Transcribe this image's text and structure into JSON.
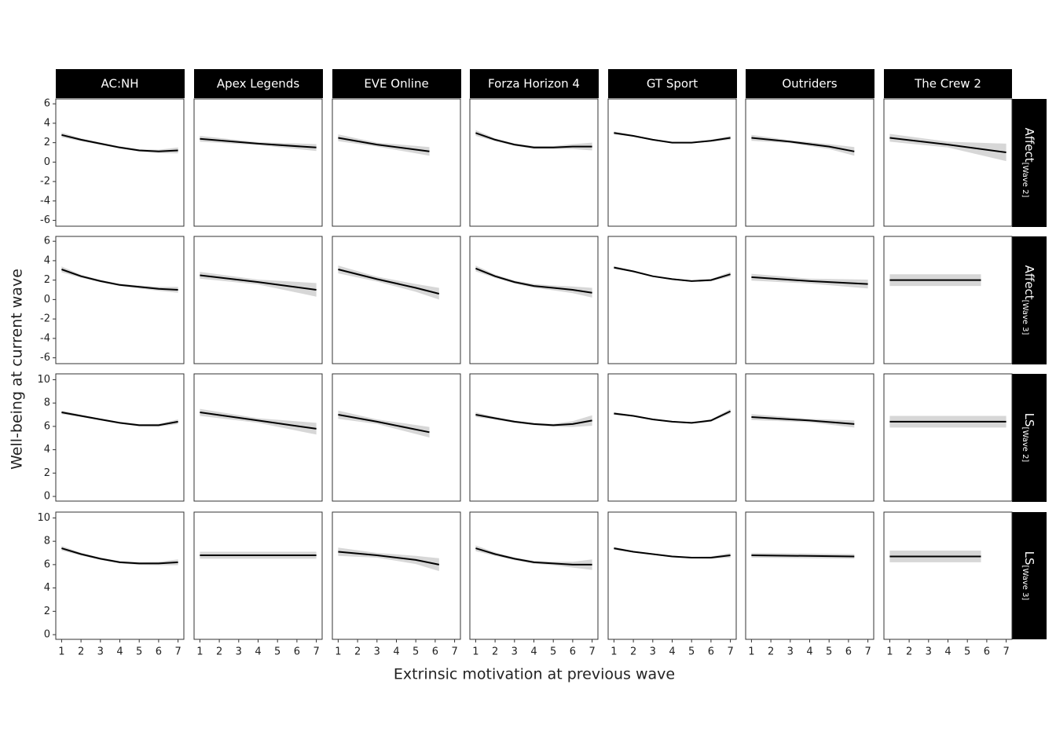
{
  "chart_data": {
    "type": "line",
    "x_label": "Extrinsic motivation at previous wave",
    "y_label": "Well-being at current wave",
    "columns": [
      "AC:NH",
      "Apex Legends",
      "EVE Online",
      "Forza Horizon 4",
      "GT Sport",
      "Outriders",
      "The Crew 2"
    ],
    "xlim": [
      0.7,
      7.3
    ],
    "xticks": [
      1,
      2,
      3,
      4,
      5,
      6,
      7
    ],
    "line_color": "#000000",
    "band_color": "#bdbdbd",
    "rows": [
      {
        "label": "Affect",
        "sub": "[Wave 2]",
        "ylim": [
          -6.6,
          6.5
        ],
        "yticks": [
          -6,
          -4,
          -2,
          0,
          2,
          4,
          6
        ],
        "panels": [
          {
            "x": [
              1,
              2,
              3,
              4,
              5,
              6,
              7
            ],
            "values": [
              2.8,
              2.3,
              1.9,
              1.5,
              1.2,
              1.1,
              1.2
            ],
            "se": [
              0.25,
              0.15,
              0.12,
              0.12,
              0.12,
              0.18,
              0.3
            ]
          },
          {
            "x": [
              1,
              4,
              7
            ],
            "values": [
              2.4,
              1.9,
              1.5
            ],
            "se": [
              0.3,
              0.15,
              0.35
            ]
          },
          {
            "x": [
              1,
              3,
              5.7
            ],
            "values": [
              2.5,
              1.8,
              1.1
            ],
            "se": [
              0.35,
              0.2,
              0.45
            ]
          },
          {
            "x": [
              1,
              2,
              3,
              4,
              5,
              6,
              7
            ],
            "values": [
              3.0,
              2.3,
              1.8,
              1.5,
              1.5,
              1.6,
              1.6
            ],
            "se": [
              0.3,
              0.15,
              0.12,
              0.15,
              0.15,
              0.25,
              0.4
            ]
          },
          {
            "x": [
              1,
              2,
              3,
              4,
              5,
              6,
              7
            ],
            "values": [
              3.0,
              2.7,
              2.3,
              2.0,
              2.0,
              2.2,
              2.5
            ],
            "se": [
              0.15,
              0.08,
              0.07,
              0.07,
              0.08,
              0.1,
              0.2
            ]
          },
          {
            "x": [
              1,
              3,
              5,
              6.3
            ],
            "values": [
              2.5,
              2.1,
              1.6,
              1.1
            ],
            "se": [
              0.3,
              0.15,
              0.25,
              0.45
            ]
          },
          {
            "x": [
              1,
              4,
              7
            ],
            "values": [
              2.5,
              1.8,
              1.0
            ],
            "se": [
              0.4,
              0.3,
              0.9
            ]
          }
        ]
      },
      {
        "label": "Affect",
        "sub": "[Wave 3]",
        "ylim": [
          -6.6,
          6.5
        ],
        "yticks": [
          -6,
          -4,
          -2,
          0,
          2,
          4,
          6
        ],
        "panels": [
          {
            "x": [
              1,
              2,
              3,
              4,
              5,
              6,
              7
            ],
            "values": [
              3.1,
              2.4,
              1.9,
              1.5,
              1.3,
              1.1,
              1.0
            ],
            "se": [
              0.3,
              0.15,
              0.12,
              0.12,
              0.15,
              0.2,
              0.3
            ]
          },
          {
            "x": [
              1,
              4,
              7
            ],
            "values": [
              2.5,
              1.8,
              1.0
            ],
            "se": [
              0.35,
              0.25,
              0.7
            ]
          },
          {
            "x": [
              1,
              3,
              5,
              6.2
            ],
            "values": [
              3.1,
              2.1,
              1.2,
              0.6
            ],
            "se": [
              0.4,
              0.25,
              0.4,
              0.6
            ]
          },
          {
            "x": [
              1,
              2,
              3,
              4,
              5,
              6,
              7
            ],
            "values": [
              3.2,
              2.4,
              1.8,
              1.4,
              1.2,
              1.0,
              0.7
            ],
            "se": [
              0.3,
              0.18,
              0.15,
              0.2,
              0.25,
              0.35,
              0.5
            ]
          },
          {
            "x": [
              1,
              2,
              3,
              4,
              5,
              6,
              7
            ],
            "values": [
              3.3,
              2.9,
              2.4,
              2.1,
              1.9,
              2.0,
              2.6
            ],
            "se": [
              0.15,
              0.08,
              0.07,
              0.07,
              0.08,
              0.12,
              0.25
            ]
          },
          {
            "x": [
              1,
              4,
              7
            ],
            "values": [
              2.3,
              1.9,
              1.6
            ],
            "se": [
              0.35,
              0.25,
              0.45
            ]
          },
          {
            "x": [
              1,
              5.7
            ],
            "values": [
              2.0,
              2.0
            ],
            "se": [
              0.6,
              0.6
            ]
          }
        ]
      },
      {
        "label": "LS",
        "sub": "[Wave 2]",
        "ylim": [
          -0.4,
          10.5
        ],
        "yticks": [
          0,
          2,
          4,
          6,
          8,
          10
        ],
        "panels": [
          {
            "x": [
              1,
              2,
              3,
              4,
              5,
              6,
              7
            ],
            "values": [
              7.2,
              6.9,
              6.6,
              6.3,
              6.1,
              6.1,
              6.4
            ],
            "se": [
              0.15,
              0.1,
              0.08,
              0.08,
              0.1,
              0.12,
              0.2
            ]
          },
          {
            "x": [
              1,
              4,
              7
            ],
            "values": [
              7.2,
              6.5,
              5.8
            ],
            "se": [
              0.3,
              0.2,
              0.5
            ]
          },
          {
            "x": [
              1,
              3,
              5.7
            ],
            "values": [
              7.0,
              6.4,
              5.5
            ],
            "se": [
              0.35,
              0.2,
              0.45
            ]
          },
          {
            "x": [
              1,
              2,
              3,
              4,
              5,
              6,
              7
            ],
            "values": [
              7.0,
              6.7,
              6.4,
              6.2,
              6.1,
              6.2,
              6.5
            ],
            "se": [
              0.2,
              0.12,
              0.1,
              0.1,
              0.12,
              0.25,
              0.45
            ]
          },
          {
            "x": [
              1,
              2,
              3,
              4,
              5,
              6,
              7
            ],
            "values": [
              7.1,
              6.9,
              6.6,
              6.4,
              6.3,
              6.5,
              7.3
            ],
            "se": [
              0.12,
              0.07,
              0.06,
              0.06,
              0.07,
              0.1,
              0.2
            ]
          },
          {
            "x": [
              1,
              4,
              6.3
            ],
            "values": [
              6.8,
              6.5,
              6.2
            ],
            "se": [
              0.25,
              0.15,
              0.3
            ]
          },
          {
            "x": [
              1,
              7
            ],
            "values": [
              6.4,
              6.4
            ],
            "se": [
              0.5,
              0.5
            ]
          }
        ]
      },
      {
        "label": "LS",
        "sub": "[Wave 3]",
        "ylim": [
          -0.4,
          10.5
        ],
        "yticks": [
          0,
          2,
          4,
          6,
          8,
          10
        ],
        "panels": [
          {
            "x": [
              1,
              2,
              3,
              4,
              5,
              6,
              7
            ],
            "values": [
              7.4,
              6.9,
              6.5,
              6.2,
              6.1,
              6.1,
              6.2
            ],
            "se": [
              0.2,
              0.12,
              0.1,
              0.1,
              0.12,
              0.15,
              0.25
            ]
          },
          {
            "x": [
              1,
              7
            ],
            "values": [
              6.8,
              6.8
            ],
            "se": [
              0.3,
              0.3
            ]
          },
          {
            "x": [
              1,
              3,
              5,
              6.2
            ],
            "values": [
              7.1,
              6.8,
              6.4,
              6.0
            ],
            "se": [
              0.35,
              0.2,
              0.35,
              0.55
            ]
          },
          {
            "x": [
              1,
              2,
              3,
              4,
              5,
              6,
              7
            ],
            "values": [
              7.4,
              6.9,
              6.5,
              6.2,
              6.1,
              6.0,
              6.0
            ],
            "se": [
              0.25,
              0.15,
              0.12,
              0.12,
              0.15,
              0.25,
              0.45
            ]
          },
          {
            "x": [
              1,
              2,
              3,
              4,
              5,
              6,
              7
            ],
            "values": [
              7.4,
              7.1,
              6.9,
              6.7,
              6.6,
              6.6,
              6.8
            ],
            "se": [
              0.12,
              0.07,
              0.06,
              0.06,
              0.07,
              0.1,
              0.2
            ]
          },
          {
            "x": [
              1,
              6.3
            ],
            "values": [
              6.8,
              6.7
            ],
            "se": [
              0.2,
              0.2
            ]
          },
          {
            "x": [
              1,
              5.7
            ],
            "values": [
              6.7,
              6.7
            ],
            "se": [
              0.5,
              0.5
            ]
          }
        ]
      }
    ]
  }
}
